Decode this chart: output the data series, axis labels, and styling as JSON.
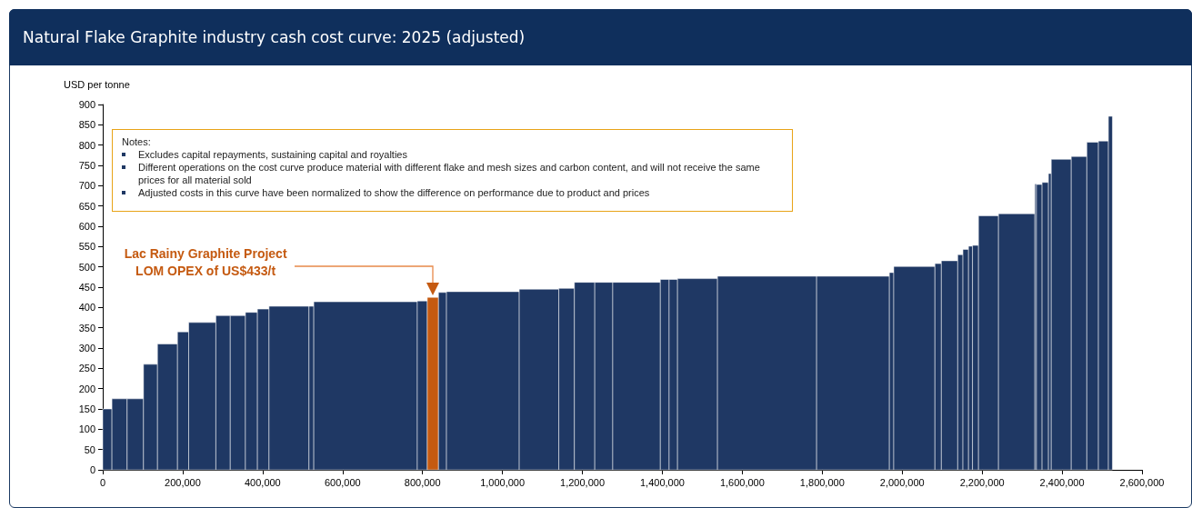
{
  "chart_data": {
    "type": "histogram",
    "title": "Natural Flake Graphite industry cash cost curve: 2025 (adjusted)",
    "ylabel": "USD per tonne",
    "bins": [
      0,
      23000,
      61000,
      102000,
      137000,
      187000,
      215000,
      283000,
      319000,
      357000,
      387000,
      416000,
      516000,
      528000,
      787000,
      812000,
      840000,
      860000,
      1042000,
      1141000,
      1180000,
      1231000,
      1276000,
      1395000,
      1417000,
      1438000,
      1538000,
      1786000,
      1968000,
      1979000,
      2082000,
      2098000,
      2139000,
      2152000,
      2166000,
      2176000,
      2191000,
      2241000,
      2332000,
      2336000,
      2350000,
      2366000,
      2373000,
      2423000,
      2462000,
      2491000,
      2516000,
      2526000
    ],
    "values": [
      150,
      175,
      175,
      260,
      310,
      340,
      363,
      380,
      380,
      388,
      396,
      403,
      403,
      414,
      416,
      425,
      437,
      439,
      445,
      447,
      462,
      462,
      462,
      469,
      469,
      471,
      477,
      477,
      486,
      501,
      508,
      515,
      530,
      543,
      551,
      553,
      626,
      631,
      704,
      703,
      708,
      730,
      765,
      772,
      807,
      810,
      871
    ],
    "colors": [
      "#1f3864",
      "#1f3864",
      "#1f3864",
      "#1f3864",
      "#1f3864",
      "#1f3864",
      "#1f3864",
      "#1f3864",
      "#1f3864",
      "#1f3864",
      "#1f3864",
      "#1f3864",
      "#1f3864",
      "#1f3864",
      "#1f3864",
      "#c55a11",
      "#1f3864",
      "#1f3864",
      "#1f3864",
      "#1f3864",
      "#1f3864",
      "#1f3864",
      "#1f3864",
      "#1f3864",
      "#1f3864",
      "#1f3864",
      "#1f3864",
      "#1f3864",
      "#1f3864",
      "#1f3864",
      "#1f3864",
      "#1f3864",
      "#1f3864",
      "#1f3864",
      "#1f3864",
      "#1f3864",
      "#1f3864",
      "#1f3864",
      "#1f3864",
      "#1f3864",
      "#1f3864",
      "#1f3864",
      "#1f3864",
      "#1f3864",
      "#1f3864",
      "#1f3864",
      "#1f3864"
    ],
    "xlim": [
      0,
      2600000
    ],
    "xticks": [
      {
        "value": 0,
        "label": "0"
      },
      {
        "value": 200000,
        "label": "200,000"
      },
      {
        "value": 400000,
        "label": "400,000"
      },
      {
        "value": 600000,
        "label": "600,000"
      },
      {
        "value": 800000,
        "label": "800,000"
      },
      {
        "value": 1000000,
        "label": "1,000,000"
      },
      {
        "value": 1200000,
        "label": "1,200,000"
      },
      {
        "value": 1400000,
        "label": "1,400,000"
      },
      {
        "value": 1600000,
        "label": "1,600,000"
      },
      {
        "value": 1800000,
        "label": "1,800,000"
      },
      {
        "value": 2000000,
        "label": "2,000,000"
      },
      {
        "value": 2200000,
        "label": "2,200,000"
      },
      {
        "value": 2400000,
        "label": "2,400,000"
      },
      {
        "value": 2600000,
        "label": "2,600,000"
      }
    ],
    "ylim": [
      0,
      900
    ],
    "yticks": [
      0,
      50,
      100,
      150,
      200,
      250,
      300,
      350,
      400,
      450,
      500,
      550,
      600,
      650,
      700,
      750,
      800,
      850,
      900
    ],
    "grid": false,
    "annotations": [
      "Notes:",
      "Excludes capital repayments, sustaining capital and royalties",
      "Different operations on the cost curve produce material with different flake and mesh sizes and carbon content, and will not receive the same prices for all material sold",
      "Adjusted costs in this curve have been normalized to show the difference on performance due to product and prices",
      "Lac Rainy Graphite Project\nLOM OPEX of US$433/t"
    ]
  }
}
